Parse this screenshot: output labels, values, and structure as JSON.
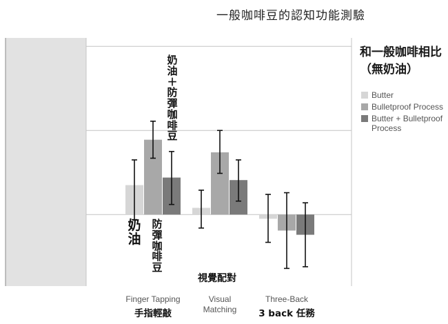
{
  "title": "一般咖啡豆的認知功能測驗",
  "legend_title": "和一般咖啡相比（無奶油）",
  "annotations": {
    "butter": "奶油",
    "bulletproof": "防彈咖啡豆",
    "combo": "奶油＋防彈咖啡豆",
    "visual_matching": "視覺配對"
  },
  "category_subtitles": [
    "手指輕敲",
    "",
    "3 back 任務"
  ],
  "chart_data": {
    "type": "bar",
    "title": "一般咖啡豆的認知功能測驗",
    "categories": [
      "Finger Tapping",
      "Visual Matching",
      "Three-Back"
    ],
    "series": [
      {
        "name": "Butter",
        "color": "#d6d6d6",
        "values": [
          0.35,
          0.08,
          -0.05
        ],
        "err_low": [
          0.65,
          -0.16,
          -0.33
        ],
        "err_high": [
          -0.06,
          0.29,
          0.24
        ]
      },
      {
        "name": "Bulletproof Process",
        "color": "#a8a8a8",
        "values": [
          0.89,
          0.74,
          -0.19
        ],
        "err_low": [
          1.11,
          1.0,
          -0.64
        ],
        "err_high": [
          0.67,
          0.49,
          0.26
        ]
      },
      {
        "name": "Butter + Bulletproof Process",
        "color": "#7a7a7a",
        "values": [
          0.44,
          0.41,
          -0.24
        ],
        "err_low": [
          0.75,
          0.65,
          -0.62
        ],
        "err_high": [
          0.12,
          0.16,
          0.14
        ]
      }
    ],
    "ylim": [
      -0.85,
      2.1
    ],
    "grid": true,
    "legend_position": "right"
  }
}
